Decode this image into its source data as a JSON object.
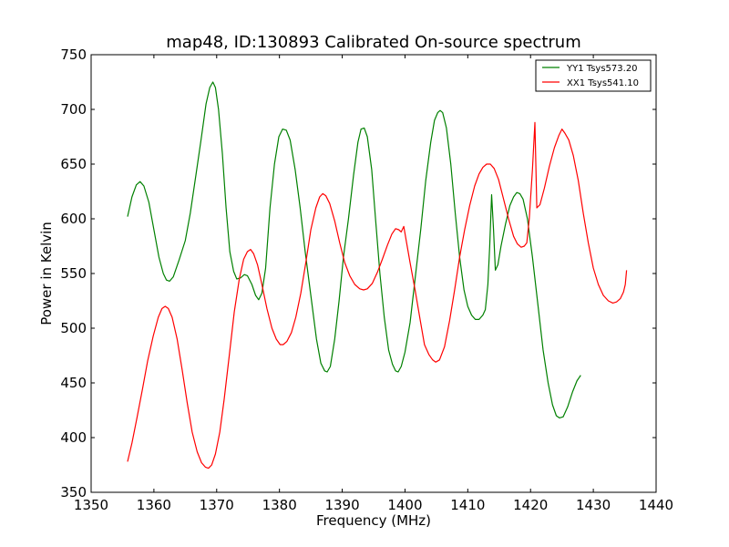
{
  "chart_data": {
    "type": "line",
    "title": "map48, ID:130893 Calibrated On-source spectrum",
    "xlabel": "Frequency (MHz)",
    "ylabel": "Power in Kelvin",
    "xlim": [
      1350,
      1440
    ],
    "ylim": [
      350,
      750
    ],
    "xticks": [
      1350,
      1360,
      1370,
      1380,
      1390,
      1400,
      1410,
      1420,
      1430,
      1440
    ],
    "yticks": [
      350,
      400,
      450,
      500,
      550,
      600,
      650,
      700,
      750
    ],
    "grid": false,
    "legend_position": "top-right",
    "series": [
      {
        "name": "YY1 Tsys573.20",
        "color": "#008000",
        "points": [
          [
            1355.8,
            602
          ],
          [
            1356.5,
            620
          ],
          [
            1357.2,
            631
          ],
          [
            1357.8,
            634
          ],
          [
            1358.4,
            630
          ],
          [
            1359.2,
            615
          ],
          [
            1360.0,
            590
          ],
          [
            1360.8,
            565
          ],
          [
            1361.5,
            550
          ],
          [
            1362.0,
            544
          ],
          [
            1362.5,
            543
          ],
          [
            1363.1,
            547
          ],
          [
            1364.0,
            562
          ],
          [
            1365.0,
            580
          ],
          [
            1365.8,
            605
          ],
          [
            1366.7,
            640
          ],
          [
            1367.5,
            672
          ],
          [
            1368.3,
            705
          ],
          [
            1368.9,
            720
          ],
          [
            1369.4,
            725
          ],
          [
            1369.8,
            720
          ],
          [
            1370.3,
            700
          ],
          [
            1370.9,
            660
          ],
          [
            1371.5,
            610
          ],
          [
            1372.1,
            570
          ],
          [
            1372.7,
            552
          ],
          [
            1373.2,
            545
          ],
          [
            1373.8,
            546
          ],
          [
            1374.4,
            549
          ],
          [
            1374.9,
            548
          ],
          [
            1375.6,
            540
          ],
          [
            1376.2,
            530
          ],
          [
            1376.7,
            526
          ],
          [
            1377.2,
            532
          ],
          [
            1377.8,
            555
          ],
          [
            1378.5,
            610
          ],
          [
            1379.2,
            650
          ],
          [
            1379.9,
            675
          ],
          [
            1380.5,
            682
          ],
          [
            1381.1,
            681
          ],
          [
            1381.7,
            672
          ],
          [
            1382.5,
            645
          ],
          [
            1383.3,
            610
          ],
          [
            1384.1,
            570
          ],
          [
            1385.0,
            530
          ],
          [
            1385.9,
            490
          ],
          [
            1386.6,
            468
          ],
          [
            1387.2,
            461
          ],
          [
            1387.6,
            460
          ],
          [
            1388.1,
            465
          ],
          [
            1388.8,
            490
          ],
          [
            1389.5,
            525
          ],
          [
            1390.2,
            565
          ],
          [
            1391.0,
            600
          ],
          [
            1391.8,
            640
          ],
          [
            1392.5,
            670
          ],
          [
            1393.0,
            682
          ],
          [
            1393.5,
            683
          ],
          [
            1394.0,
            675
          ],
          [
            1394.7,
            645
          ],
          [
            1395.3,
            600
          ],
          [
            1396.0,
            550
          ],
          [
            1396.7,
            510
          ],
          [
            1397.4,
            480
          ],
          [
            1398.0,
            467
          ],
          [
            1398.5,
            461
          ],
          [
            1398.9,
            460
          ],
          [
            1399.4,
            465
          ],
          [
            1400.0,
            478
          ],
          [
            1400.8,
            505
          ],
          [
            1401.6,
            545
          ],
          [
            1402.5,
            590
          ],
          [
            1403.3,
            635
          ],
          [
            1404.1,
            670
          ],
          [
            1404.7,
            690
          ],
          [
            1405.2,
            697
          ],
          [
            1405.6,
            699
          ],
          [
            1406.0,
            697
          ],
          [
            1406.6,
            683
          ],
          [
            1407.3,
            650
          ],
          [
            1408.0,
            605
          ],
          [
            1408.7,
            565
          ],
          [
            1409.4,
            535
          ],
          [
            1410.0,
            520
          ],
          [
            1410.6,
            512
          ],
          [
            1411.2,
            508
          ],
          [
            1411.8,
            508
          ],
          [
            1412.4,
            512
          ],
          [
            1412.8,
            517
          ],
          [
            1413.2,
            540
          ],
          [
            1413.5,
            575
          ],
          [
            1413.8,
            622
          ],
          [
            1414.1,
            590
          ],
          [
            1414.4,
            553
          ],
          [
            1414.8,
            558
          ],
          [
            1415.3,
            575
          ],
          [
            1416.0,
            595
          ],
          [
            1416.7,
            612
          ],
          [
            1417.3,
            620
          ],
          [
            1417.8,
            624
          ],
          [
            1418.3,
            623
          ],
          [
            1418.8,
            618
          ],
          [
            1419.5,
            600
          ],
          [
            1420.3,
            565
          ],
          [
            1421.2,
            520
          ],
          [
            1422.0,
            480
          ],
          [
            1422.8,
            450
          ],
          [
            1423.5,
            430
          ],
          [
            1424.1,
            420
          ],
          [
            1424.6,
            418
          ],
          [
            1425.2,
            419
          ],
          [
            1425.9,
            428
          ],
          [
            1426.7,
            442
          ],
          [
            1427.4,
            452
          ],
          [
            1428.0,
            457
          ]
        ]
      },
      {
        "name": "XX1 Tsys541.10",
        "color": "#ff0000",
        "points": [
          [
            1355.8,
            378
          ],
          [
            1356.5,
            395
          ],
          [
            1357.3,
            418
          ],
          [
            1358.2,
            445
          ],
          [
            1359.0,
            470
          ],
          [
            1359.9,
            493
          ],
          [
            1360.7,
            510
          ],
          [
            1361.3,
            518
          ],
          [
            1361.8,
            520
          ],
          [
            1362.3,
            518
          ],
          [
            1362.9,
            510
          ],
          [
            1363.7,
            490
          ],
          [
            1364.5,
            462
          ],
          [
            1365.3,
            432
          ],
          [
            1366.1,
            405
          ],
          [
            1366.9,
            387
          ],
          [
            1367.6,
            377
          ],
          [
            1368.2,
            373
          ],
          [
            1368.7,
            372
          ],
          [
            1369.2,
            375
          ],
          [
            1369.8,
            385
          ],
          [
            1370.5,
            405
          ],
          [
            1371.2,
            435
          ],
          [
            1372.0,
            475
          ],
          [
            1372.8,
            515
          ],
          [
            1373.6,
            545
          ],
          [
            1374.3,
            563
          ],
          [
            1374.9,
            570
          ],
          [
            1375.4,
            572
          ],
          [
            1375.9,
            568
          ],
          [
            1376.5,
            558
          ],
          [
            1377.2,
            540
          ],
          [
            1378.0,
            518
          ],
          [
            1378.8,
            500
          ],
          [
            1379.5,
            490
          ],
          [
            1380.1,
            485
          ],
          [
            1380.6,
            485
          ],
          [
            1381.2,
            488
          ],
          [
            1381.9,
            496
          ],
          [
            1382.6,
            510
          ],
          [
            1383.4,
            532
          ],
          [
            1384.2,
            560
          ],
          [
            1385.0,
            590
          ],
          [
            1385.8,
            610
          ],
          [
            1386.4,
            620
          ],
          [
            1386.9,
            623
          ],
          [
            1387.4,
            621
          ],
          [
            1388.0,
            614
          ],
          [
            1388.8,
            598
          ],
          [
            1389.6,
            578
          ],
          [
            1390.4,
            560
          ],
          [
            1391.2,
            548
          ],
          [
            1392.0,
            540
          ],
          [
            1392.8,
            536
          ],
          [
            1393.4,
            535
          ],
          [
            1394.0,
            536
          ],
          [
            1394.8,
            541
          ],
          [
            1395.6,
            551
          ],
          [
            1396.4,
            563
          ],
          [
            1397.2,
            576
          ],
          [
            1397.9,
            586
          ],
          [
            1398.5,
            591
          ],
          [
            1399.0,
            590
          ],
          [
            1399.4,
            588
          ],
          [
            1399.8,
            593
          ],
          [
            1400.2,
            580
          ],
          [
            1400.8,
            560
          ],
          [
            1401.6,
            535
          ],
          [
            1402.4,
            508
          ],
          [
            1403.1,
            485
          ],
          [
            1403.8,
            476
          ],
          [
            1404.4,
            471
          ],
          [
            1404.9,
            469
          ],
          [
            1405.5,
            471
          ],
          [
            1406.3,
            483
          ],
          [
            1407.1,
            507
          ],
          [
            1407.9,
            535
          ],
          [
            1408.7,
            565
          ],
          [
            1409.5,
            590
          ],
          [
            1410.3,
            612
          ],
          [
            1411.1,
            630
          ],
          [
            1411.8,
            641
          ],
          [
            1412.4,
            647
          ],
          [
            1413.0,
            650
          ],
          [
            1413.6,
            650
          ],
          [
            1414.2,
            646
          ],
          [
            1414.9,
            636
          ],
          [
            1415.7,
            618
          ],
          [
            1416.5,
            600
          ],
          [
            1417.3,
            584
          ],
          [
            1417.9,
            577
          ],
          [
            1418.5,
            574
          ],
          [
            1419.0,
            575
          ],
          [
            1419.4,
            578
          ],
          [
            1419.8,
            600
          ],
          [
            1420.3,
            645
          ],
          [
            1420.7,
            688
          ],
          [
            1421.0,
            610
          ],
          [
            1421.5,
            613
          ],
          [
            1422.2,
            628
          ],
          [
            1423.0,
            648
          ],
          [
            1423.8,
            665
          ],
          [
            1424.5,
            676
          ],
          [
            1425.0,
            682
          ],
          [
            1425.5,
            678
          ],
          [
            1426.1,
            672
          ],
          [
            1426.8,
            658
          ],
          [
            1427.6,
            635
          ],
          [
            1428.4,
            605
          ],
          [
            1429.2,
            578
          ],
          [
            1430.0,
            555
          ],
          [
            1430.8,
            540
          ],
          [
            1431.6,
            530
          ],
          [
            1432.4,
            525
          ],
          [
            1433.1,
            523
          ],
          [
            1433.7,
            524
          ],
          [
            1434.3,
            527
          ],
          [
            1434.8,
            533
          ],
          [
            1435.1,
            540
          ],
          [
            1435.3,
            553
          ]
        ]
      }
    ]
  }
}
